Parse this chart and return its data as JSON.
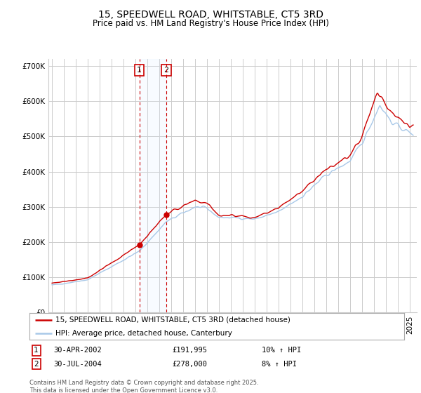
{
  "title": "15, SPEEDWELL ROAD, WHITSTABLE, CT5 3RD",
  "subtitle": "Price paid vs. HM Land Registry's House Price Index (HPI)",
  "ylim": [
    0,
    720000
  ],
  "yticks": [
    0,
    100000,
    200000,
    300000,
    400000,
    500000,
    600000,
    700000
  ],
  "ytick_labels": [
    "£0",
    "£100K",
    "£200K",
    "£300K",
    "£400K",
    "£500K",
    "£600K",
    "£700K"
  ],
  "background_color": "#ffffff",
  "grid_color": "#cccccc",
  "sale_color": "#cc0000",
  "hpi_color": "#a8c8e8",
  "vline_color": "#cc0000",
  "vshade_color": "#ddeeff",
  "legend_label_sale": "15, SPEEDWELL ROAD, WHITSTABLE, CT5 3RD (detached house)",
  "legend_label_hpi": "HPI: Average price, detached house, Canterbury",
  "sale1_year": 2002.333,
  "sale1_price": 191995,
  "sale1_label": "30-APR-2002",
  "sale1_hpi_pct": "10% ↑ HPI",
  "sale2_year": 2004.583,
  "sale2_price": 278000,
  "sale2_label": "30-JUL-2004",
  "sale2_hpi_pct": "8% ↑ HPI",
  "footer": "Contains HM Land Registry data © Crown copyright and database right 2025.\nThis data is licensed under the Open Government Licence v3.0.",
  "title_fontsize": 10,
  "subtitle_fontsize": 8.5,
  "tick_fontsize": 7.5,
  "legend_fontsize": 7.5,
  "annotation_fontsize": 7.5,
  "footer_fontsize": 6.0
}
